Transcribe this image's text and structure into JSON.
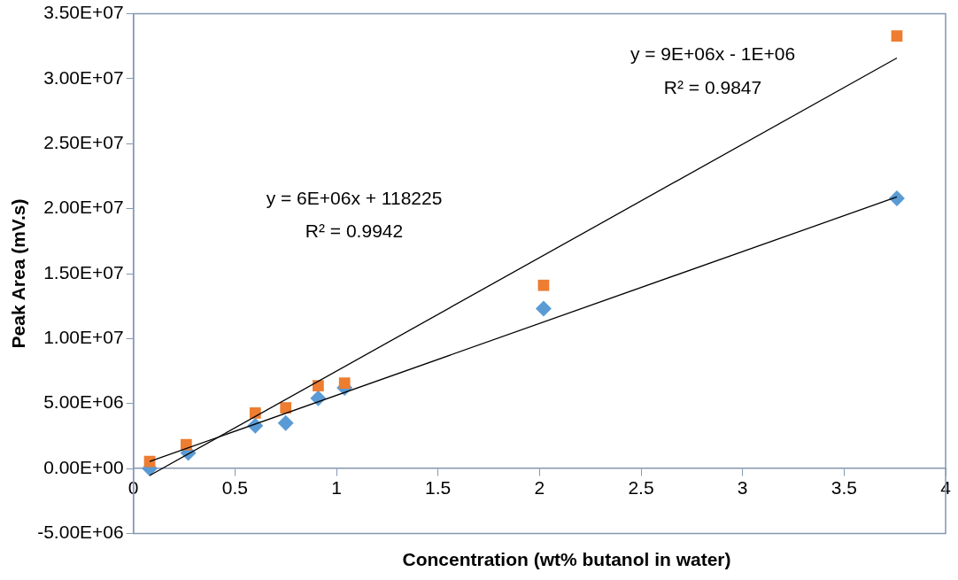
{
  "chart_data": {
    "type": "scatter",
    "xlabel": "Concentration (wt% butanol in water)",
    "ylabel": "Peak Area (mV.s)",
    "xlim": [
      0,
      4
    ],
    "xticks": [
      0,
      0.5,
      1,
      1.5,
      2,
      2.5,
      3,
      3.5,
      4
    ],
    "ylim": [
      -5000000,
      35000000
    ],
    "yticks": [
      {
        "value": -5000000,
        "label": "-5.00E+06"
      },
      {
        "value": 0,
        "label": "0.00E+00"
      },
      {
        "value": 5000000,
        "label": "5.00E+06"
      },
      {
        "value": 10000000,
        "label": "1.00E+07"
      },
      {
        "value": 15000000,
        "label": "1.50E+07"
      },
      {
        "value": 20000000,
        "label": "2.00E+07"
      },
      {
        "value": 25000000,
        "label": "2.50E+07"
      },
      {
        "value": 30000000,
        "label": "3.00E+07"
      },
      {
        "value": 35000000,
        "label": "3.50E+07"
      }
    ],
    "grid": false,
    "legend": false,
    "series": [
      {
        "type": "scatter",
        "marker": "diamond",
        "color": "#5b9bd5",
        "x": [
          0.08,
          0.27,
          0.6,
          0.75,
          0.91,
          1.04,
          2.02,
          3.76
        ],
        "values": [
          0,
          1200000,
          3300000,
          3500000,
          5400000,
          6200000,
          12300000,
          20800000
        ]
      },
      {
        "type": "scatter",
        "marker": "square",
        "color": "#ed7d31",
        "x": [
          0.08,
          0.26,
          0.6,
          0.75,
          0.91,
          1.04,
          2.02,
          3.76
        ],
        "values": [
          540000,
          1830000,
          4270000,
          4670000,
          6370000,
          6570000,
          14100000,
          33300000
        ]
      },
      {
        "type": "line",
        "marker": "none",
        "color": "#000000",
        "x": [
          0.08,
          3.76
        ],
        "values": [
          540000,
          20900000
        ]
      },
      {
        "type": "line",
        "marker": "none",
        "color": "#000000",
        "x": [
          0.08,
          3.76
        ],
        "values": [
          -540000,
          31600000
        ]
      }
    ],
    "annotations": [
      "y = 9E+06x - 1E+06",
      "R² = 0.9847",
      "y = 6E+06x + 118225",
      "R² = 0.9942"
    ]
  }
}
